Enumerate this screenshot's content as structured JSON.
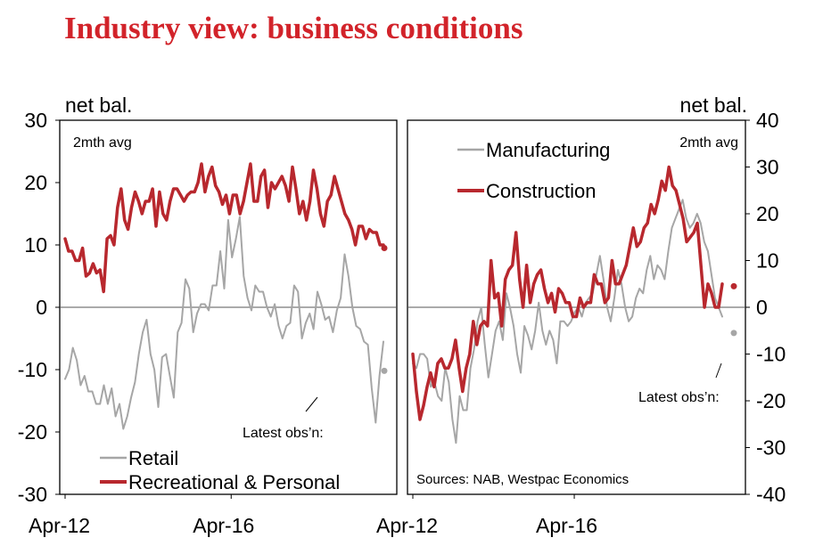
{
  "title": "Industry view: business conditions",
  "colors": {
    "accent": "#d2232a",
    "red_series": "#b8282e",
    "grey_series": "#a6a6a6",
    "axis": "#000000",
    "zero_line": "#555555"
  },
  "chart_data": [
    {
      "type": "line",
      "panel": "left",
      "unit_label": "net bal.",
      "annotation": "2mth avg",
      "latest_obs_label": "Latest obs’n:",
      "ylim": [
        -30,
        30
      ],
      "yticks": [
        30,
        20,
        10,
        0,
        -10,
        -20,
        -30
      ],
      "ytick_labels": [
        "30",
        "20",
        "10",
        "0",
        "-10",
        "-20",
        "-30"
      ],
      "xlim": [
        0,
        100
      ],
      "xtick_labels": [
        "Apr-12",
        "Apr-16"
      ],
      "xtick_positions": [
        0,
        48
      ],
      "start": "Apr-12",
      "legend_location": "bottom-left",
      "series": [
        {
          "name": "Retail",
          "color": "#a6a6a6",
          "values": [
            -11.5,
            -10,
            -6.5,
            -8.5,
            -12.5,
            -11,
            -13.5,
            -13.5,
            -15.5,
            -15.5,
            -12.5,
            -15.5,
            -13,
            -17.5,
            -15.5,
            -19.5,
            -17.5,
            -14.5,
            -12,
            -7.5,
            -4,
            -2,
            -7.5,
            -10,
            -16,
            -8,
            -7.5,
            -11,
            -14.5,
            -4,
            -2.5,
            4.5,
            3,
            -4,
            -1,
            0.5,
            0.5,
            -0.5,
            3.5,
            3.5,
            9,
            3,
            14,
            8,
            11,
            14.5,
            5,
            1.5,
            -0.5,
            3.5,
            2.5,
            2.5,
            0,
            -1.5,
            0.5,
            -3,
            -5,
            -3,
            -2.5,
            3.5,
            2.5,
            -5,
            -2.5,
            -1,
            -3.5,
            2.5,
            0.5,
            -2,
            -1.5,
            -4,
            -0.5,
            1.5,
            8.5,
            5,
            0,
            -3,
            -3.5,
            -5.5,
            -6,
            -13,
            -18.5,
            -11,
            -5.5
          ],
          "latest": -10.2
        },
        {
          "name": "Recreational & Personal",
          "color": "#b8282e",
          "values": [
            11,
            9,
            9,
            7.5,
            7.5,
            9.5,
            5,
            5.5,
            7,
            5.5,
            6,
            2.5,
            11,
            11.5,
            10,
            16,
            19,
            14,
            12.5,
            16,
            18.5,
            17,
            15,
            17,
            17,
            19,
            13,
            18.5,
            15,
            14,
            17,
            19,
            19,
            18,
            17,
            18,
            18.5,
            18.5,
            20,
            23,
            18.5,
            21,
            22.5,
            19.5,
            18.5,
            16.5,
            18,
            15,
            18,
            18,
            15,
            17,
            20,
            23,
            17,
            17,
            21,
            22,
            16,
            20,
            19,
            20,
            21,
            19.5,
            17,
            22.5,
            19,
            15,
            17,
            14,
            17,
            22,
            19,
            15,
            13,
            17,
            18,
            21,
            19,
            17,
            15,
            14,
            12.5,
            10,
            13,
            13,
            11,
            12.5,
            12,
            12,
            10,
            10
          ],
          "latest": 9.5
        }
      ]
    },
    {
      "type": "line",
      "panel": "right",
      "unit_label": "net bal.",
      "annotation": "2mth avg",
      "latest_obs_label": "Latest obs’n:",
      "source": "Sources: NAB, Westpac Economics",
      "ylim": [
        -40,
        40
      ],
      "yticks": [
        40,
        30,
        20,
        10,
        0,
        -10,
        -20,
        -30,
        -40
      ],
      "ytick_labels": [
        "40",
        "30",
        "20",
        "10",
        "0",
        "-10",
        "-20",
        "-30",
        "-40"
      ],
      "xlim": [
        0,
        100
      ],
      "xtick_labels": [
        "Apr-12",
        "Apr-16"
      ],
      "xtick_positions": [
        0,
        48
      ],
      "start": "Apr-12",
      "legend_location": "top-left",
      "series": [
        {
          "name": "Manufacturing",
          "color": "#a6a6a6",
          "values": [
            -12,
            -13,
            -10,
            -10,
            -11,
            -17,
            -16,
            -19,
            -20,
            -13,
            -16,
            -24,
            -29,
            -19,
            -22,
            -22,
            -13,
            -9,
            -3,
            0,
            -8,
            -15,
            -10,
            -5,
            -3,
            -7,
            3,
            0,
            -4,
            -10,
            -14,
            -4,
            -6,
            -9,
            -5,
            1,
            -5,
            -8,
            -5,
            -7,
            -12,
            -3,
            -3,
            -4,
            -3,
            -1,
            0,
            -2,
            1,
            2,
            3,
            7,
            11,
            6,
            0,
            -3,
            2,
            8,
            5,
            0,
            -3,
            -2,
            2,
            4,
            3,
            8,
            11,
            6,
            9,
            8,
            6,
            12,
            17,
            19,
            21,
            23,
            19,
            17,
            18,
            20,
            18,
            14,
            12,
            7,
            2,
            0,
            -2
          ],
          "latest": -5.5
        },
        {
          "name": "Construction",
          "color": "#b8282e",
          "values": [
            -10,
            -18,
            -24,
            -21,
            -17,
            -14,
            -17,
            -12,
            -11,
            -13,
            -13,
            -11,
            -7,
            -13,
            -18,
            -13,
            -10,
            -3,
            -8,
            -4,
            -3,
            -4,
            10,
            2,
            3,
            -4,
            6,
            8,
            9,
            16,
            6,
            0,
            9,
            1,
            5,
            7,
            8,
            4,
            1,
            3,
            -1,
            4,
            3,
            1,
            1,
            -2,
            -2,
            2,
            0,
            1,
            1,
            7,
            5,
            5,
            1,
            2,
            10,
            5,
            5,
            7,
            9,
            13,
            17,
            13,
            14,
            17,
            18,
            22,
            20,
            23,
            27,
            25,
            30,
            26,
            25,
            22,
            19,
            14,
            15,
            16,
            18,
            9,
            0,
            5,
            3,
            0,
            0,
            5
          ],
          "latest": 4.5
        }
      ]
    }
  ]
}
